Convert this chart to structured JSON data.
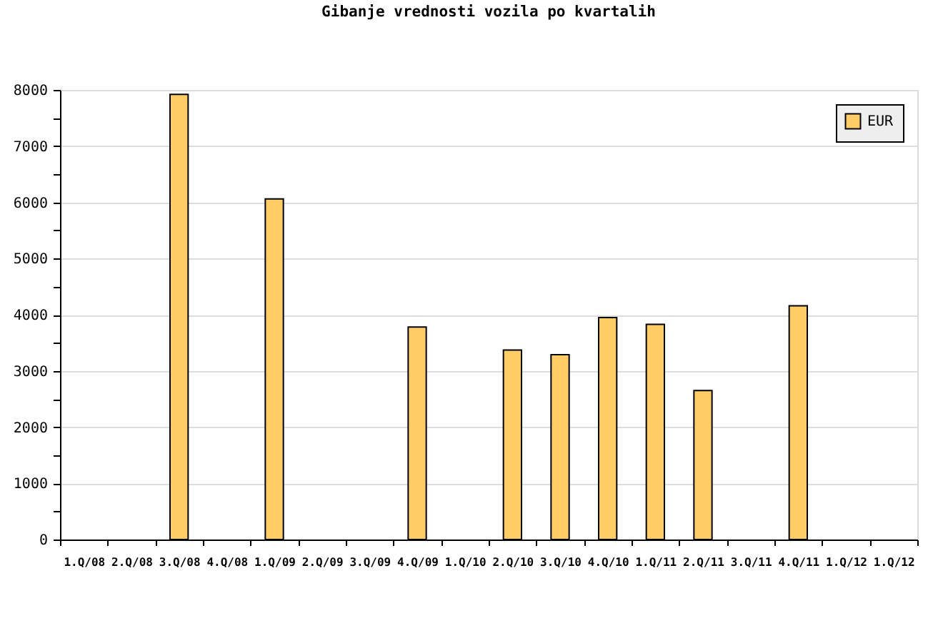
{
  "chart_data": {
    "type": "bar",
    "title": "Gibanje vrednosti vozila po kvartalih",
    "categories": [
      "1.Q/08",
      "2.Q/08",
      "3.Q/08",
      "4.Q/08",
      "1.Q/09",
      "2.Q/09",
      "3.Q/09",
      "4.Q/09",
      "1.Q/10",
      "2.Q/10",
      "3.Q/10",
      "4.Q/10",
      "1.Q/11",
      "2.Q/11",
      "3.Q/11",
      "4.Q/11",
      "1.Q/12",
      "1.Q/12"
    ],
    "series": [
      {
        "name": "EUR",
        "color": "#ffcc66",
        "values": [
          null,
          null,
          7920,
          null,
          6060,
          null,
          null,
          3780,
          null,
          3370,
          3290,
          3950,
          3830,
          2650,
          null,
          4160,
          null,
          null
        ]
      }
    ],
    "ylim": [
      0,
      8000
    ],
    "yticks": [
      0,
      {
        "value": 500,
        "label": null
      },
      1000,
      {
        "value": 1500,
        "label": null
      },
      2000,
      {
        "value": 2500,
        "label": null
      },
      3000,
      {
        "value": 3500,
        "label": null
      },
      4000,
      {
        "value": 4500,
        "label": null
      },
      5000,
      {
        "value": 5500,
        "label": null
      },
      6000,
      {
        "value": 6500,
        "label": null
      },
      7000,
      {
        "value": 7500,
        "label": null
      },
      8000
    ],
    "grid": "y",
    "legend": "top right"
  }
}
